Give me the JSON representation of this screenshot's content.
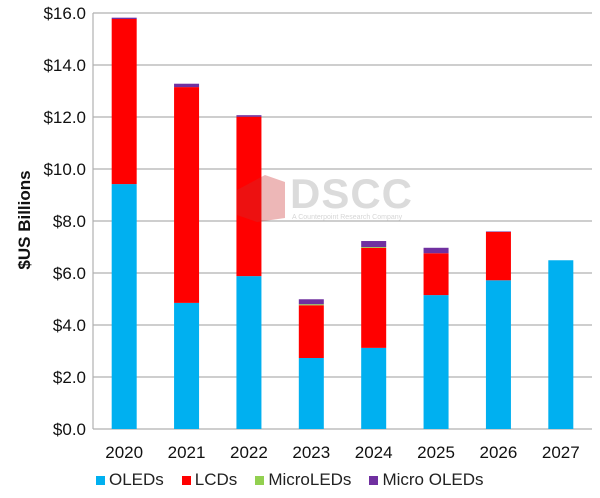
{
  "chart_data": {
    "type": "bar",
    "stacked": true,
    "ylabel": "$US Billions",
    "ylim": [
      0,
      16
    ],
    "yticks": [
      "$0.0",
      "$2.0",
      "$4.0",
      "$6.0",
      "$8.0",
      "$10.0",
      "$12.0",
      "$14.0",
      "$16.0"
    ],
    "grid": true,
    "legend_position": "bottom",
    "categories": [
      "2020",
      "2021",
      "2022",
      "2023",
      "2024",
      "2025",
      "2026",
      "2027"
    ],
    "series": [
      {
        "name": "OLEDs",
        "color": "#00B0F0",
        "values": [
          9.42,
          4.85,
          5.88,
          2.73,
          3.12,
          5.15,
          5.72,
          6.49
        ]
      },
      {
        "name": "LCDs",
        "color": "#FF0000",
        "values": [
          6.35,
          8.3,
          6.13,
          2.03,
          3.85,
          1.61,
          1.86,
          0
        ]
      },
      {
        "name": "MicroLEDs",
        "color": "#92D050",
        "values": [
          0,
          0,
          0,
          0.04,
          0.03,
          0,
          0,
          0
        ]
      },
      {
        "name": "Micro OLEDs",
        "color": "#7030A0",
        "values": [
          0.05,
          0.13,
          0.06,
          0.19,
          0.23,
          0.21,
          0.02,
          0
        ]
      }
    ]
  },
  "watermark": {
    "logo": "DSCC",
    "tagline": "A Counterpoint Research Company"
  }
}
